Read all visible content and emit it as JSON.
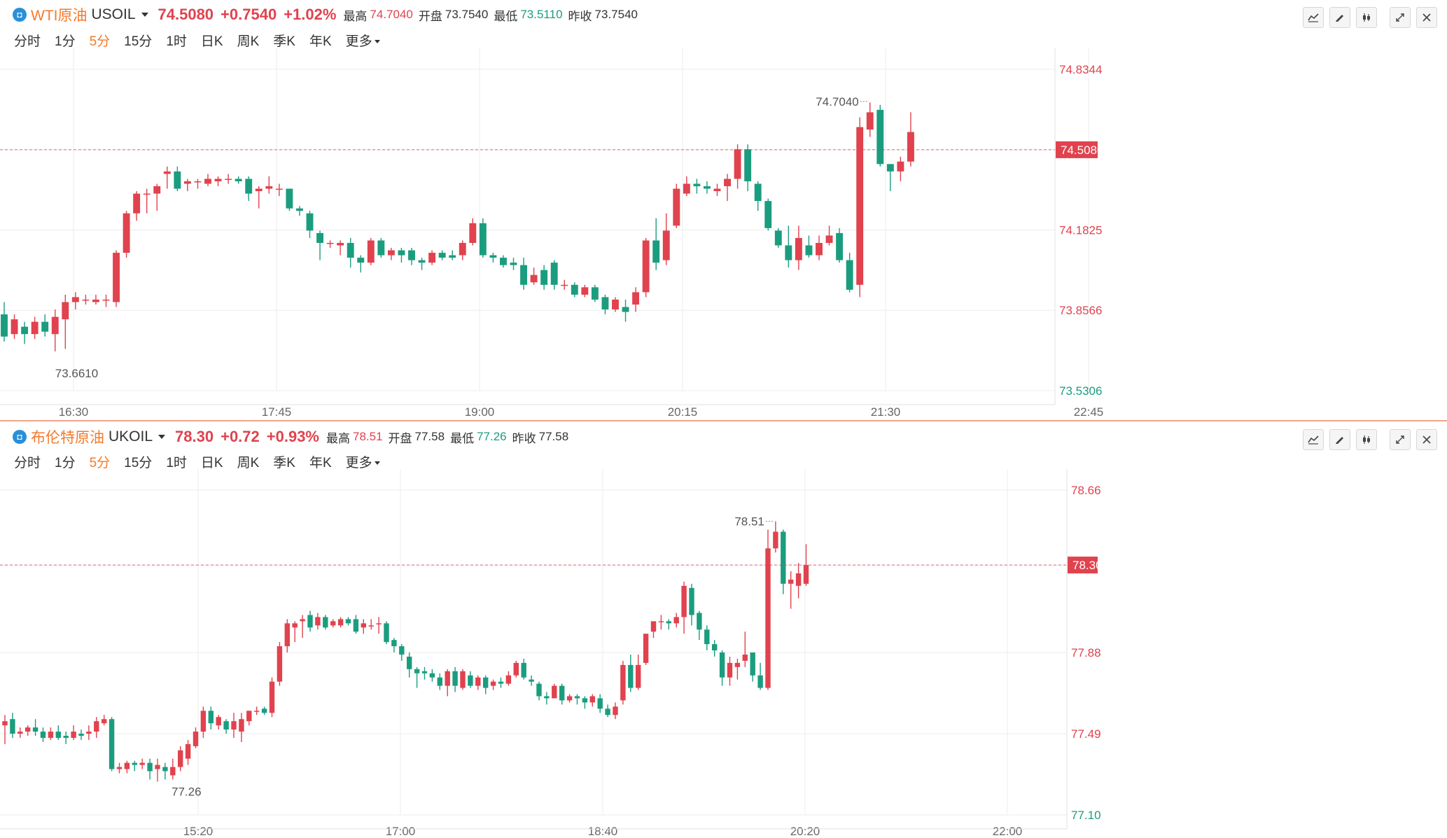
{
  "periods": [
    "分时",
    "1分",
    "5分",
    "15分",
    "1时",
    "日K",
    "周K",
    "季K",
    "年K",
    "更多"
  ],
  "active_period": "5分",
  "colors": {
    "up": "#e0424e",
    "down": "#1a9d7e",
    "accent": "#f47a2a",
    "grid": "#ececec"
  },
  "icons": [
    "indicator-icon",
    "draw-icon",
    "candle-type-icon",
    "expand-icon",
    "close-icon"
  ],
  "wti": {
    "logo": "◘",
    "name": "WTI原油",
    "symbol": "USOIL",
    "price": "74.5080",
    "change": "+0.7540",
    "change_pct": "+1.02%",
    "high_label": "最高",
    "high": "74.7040",
    "open_label": "开盘",
    "open": "73.7540",
    "low_label": "最低",
    "low": "73.5110",
    "prev_label": "昨收",
    "prev": "73.7540"
  },
  "brent": {
    "logo": "◘",
    "name": "布伦特原油",
    "symbol": "UKOIL",
    "price": "78.30",
    "change": "+0.72",
    "change_pct": "+0.93%",
    "high_label": "最高",
    "high": "78.51",
    "open_label": "开盘",
    "open": "77.58",
    "low_label": "最低",
    "low": "77.26",
    "prev_label": "昨收",
    "prev": "77.58"
  },
  "chart_data": [
    {
      "type": "candlestick",
      "title": "WTI原油 USOIL",
      "x_ticks": [
        "16:30",
        "17:45",
        "19:00",
        "20:15",
        "21:30",
        "22:45"
      ],
      "y_ticks": [
        "74.8344",
        "74.5080",
        "74.1825",
        "73.8566",
        "73.5306"
      ],
      "ylim": [
        73.5306,
        74.8344
      ],
      "last_price": 74.508,
      "last_label": "74.5080",
      "max_annotation": {
        "label": "74.7040",
        "value": 74.704
      },
      "min_annotation": {
        "label": "73.6610",
        "value": 73.661
      },
      "candles": [
        [
          73.84,
          73.75,
          73.89,
          73.73
        ],
        [
          73.76,
          73.82,
          73.84,
          73.74
        ],
        [
          73.79,
          73.76,
          73.81,
          73.72
        ],
        [
          73.76,
          73.81,
          73.83,
          73.74
        ],
        [
          73.81,
          73.77,
          73.84,
          73.75
        ],
        [
          73.76,
          73.83,
          73.86,
          73.69
        ],
        [
          73.82,
          73.89,
          73.92,
          73.7
        ],
        [
          73.89,
          73.91,
          73.93,
          73.86
        ],
        [
          73.9,
          73.9,
          73.92,
          73.88
        ],
        [
          73.89,
          73.9,
          73.92,
          73.88
        ],
        [
          73.9,
          73.9,
          73.92,
          73.87
        ],
        [
          73.89,
          74.09,
          74.1,
          73.87
        ],
        [
          74.09,
          74.25,
          74.26,
          74.07
        ],
        [
          74.25,
          74.33,
          74.34,
          74.22
        ],
        [
          74.33,
          74.33,
          74.35,
          74.25
        ],
        [
          74.33,
          74.36,
          74.37,
          74.26
        ],
        [
          74.41,
          74.42,
          74.44,
          74.35
        ],
        [
          74.42,
          74.35,
          74.44,
          74.34
        ],
        [
          74.37,
          74.38,
          74.39,
          74.34
        ],
        [
          74.38,
          74.38,
          74.39,
          74.35
        ],
        [
          74.37,
          74.39,
          74.41,
          74.36
        ],
        [
          74.38,
          74.39,
          74.4,
          74.36
        ],
        [
          74.39,
          74.39,
          74.41,
          74.37
        ],
        [
          74.39,
          74.38,
          74.4,
          74.37
        ],
        [
          74.39,
          74.33,
          74.4,
          74.3
        ],
        [
          74.34,
          74.35,
          74.36,
          74.27
        ],
        [
          74.35,
          74.36,
          74.4,
          74.33
        ],
        [
          74.35,
          74.35,
          74.37,
          74.32
        ],
        [
          74.35,
          74.27,
          74.35,
          74.26
        ],
        [
          74.27,
          74.26,
          74.28,
          74.24
        ],
        [
          74.25,
          74.18,
          74.26,
          74.15
        ],
        [
          74.17,
          74.13,
          74.18,
          74.06
        ],
        [
          74.13,
          74.13,
          74.14,
          74.11
        ],
        [
          74.12,
          74.13,
          74.14,
          74.08
        ],
        [
          74.13,
          74.07,
          74.15,
          74.03
        ],
        [
          74.07,
          74.05,
          74.08,
          74.01
        ],
        [
          74.05,
          74.14,
          74.15,
          74.04
        ],
        [
          74.14,
          74.08,
          74.15,
          74.07
        ],
        [
          74.08,
          74.1,
          74.11,
          74.06
        ],
        [
          74.1,
          74.08,
          74.11,
          74.05
        ],
        [
          74.1,
          74.06,
          74.11,
          74.04
        ],
        [
          74.06,
          74.05,
          74.07,
          74.02
        ],
        [
          74.05,
          74.09,
          74.1,
          74.04
        ],
        [
          74.09,
          74.07,
          74.1,
          74.06
        ],
        [
          74.08,
          74.07,
          74.1,
          74.06
        ],
        [
          74.08,
          74.13,
          74.14,
          74.06
        ],
        [
          74.13,
          74.21,
          74.23,
          74.12
        ],
        [
          74.21,
          74.08,
          74.23,
          74.07
        ],
        [
          74.08,
          74.07,
          74.09,
          74.05
        ],
        [
          74.07,
          74.04,
          74.08,
          74.03
        ],
        [
          74.05,
          74.04,
          74.07,
          74.02
        ],
        [
          74.04,
          73.96,
          74.07,
          73.94
        ],
        [
          73.97,
          74.0,
          74.03,
          73.96
        ],
        [
          74.02,
          73.96,
          74.04,
          73.94
        ],
        [
          74.05,
          73.96,
          74.06,
          73.94
        ],
        [
          73.96,
          73.96,
          73.98,
          73.94
        ],
        [
          73.96,
          73.92,
          73.97,
          73.91
        ],
        [
          73.92,
          73.95,
          73.96,
          73.91
        ],
        [
          73.95,
          73.9,
          73.96,
          73.89
        ],
        [
          73.91,
          73.86,
          73.92,
          73.84
        ],
        [
          73.86,
          73.9,
          73.91,
          73.85
        ],
        [
          73.87,
          73.85,
          73.9,
          73.81
        ],
        [
          73.88,
          73.93,
          73.95,
          73.85
        ],
        [
          73.93,
          74.14,
          74.15,
          73.91
        ],
        [
          74.14,
          74.05,
          74.23,
          74.02
        ],
        [
          74.06,
          74.18,
          74.25,
          74.04
        ],
        [
          74.2,
          74.35,
          74.37,
          74.19
        ],
        [
          74.33,
          74.37,
          74.4,
          74.32
        ],
        [
          74.37,
          74.36,
          74.39,
          74.33
        ],
        [
          74.36,
          74.35,
          74.38,
          74.33
        ],
        [
          74.34,
          74.35,
          74.37,
          74.32
        ],
        [
          74.36,
          74.39,
          74.41,
          74.3
        ],
        [
          74.39,
          74.51,
          74.53,
          74.35
        ],
        [
          74.51,
          74.38,
          74.53,
          74.34
        ],
        [
          74.37,
          74.3,
          74.38,
          74.26
        ],
        [
          74.3,
          74.19,
          74.31,
          74.18
        ],
        [
          74.18,
          74.12,
          74.19,
          74.11
        ],
        [
          74.12,
          74.06,
          74.2,
          74.03
        ],
        [
          74.06,
          74.15,
          74.2,
          74.02
        ],
        [
          74.12,
          74.08,
          74.16,
          74.07
        ],
        [
          74.08,
          74.13,
          74.16,
          74.06
        ],
        [
          74.13,
          74.16,
          74.2,
          74.12
        ],
        [
          74.17,
          74.06,
          74.19,
          74.05
        ],
        [
          74.06,
          73.94,
          74.09,
          73.93
        ],
        [
          73.96,
          74.6,
          74.64,
          73.91
        ],
        [
          74.59,
          74.66,
          74.7,
          74.56
        ],
        [
          74.67,
          74.45,
          74.69,
          74.44
        ],
        [
          74.45,
          74.42,
          74.45,
          74.34
        ],
        [
          74.42,
          74.46,
          74.48,
          74.38
        ],
        [
          74.46,
          74.58,
          74.66,
          74.44
        ]
      ]
    },
    {
      "type": "candlestick",
      "title": "布伦特原油 UKOIL",
      "x_ticks": [
        "15:20",
        "17:00",
        "18:40",
        "20:20",
        "22:00"
      ],
      "y_ticks": [
        "78.66",
        "78.30",
        "77.88",
        "77.49",
        "77.10"
      ],
      "ylim": [
        77.1,
        78.66
      ],
      "last_price": 78.3,
      "last_label": "78.30",
      "max_annotation": {
        "label": "78.51",
        "value": 78.51
      },
      "min_annotation": {
        "label": "77.26",
        "value": 77.26
      },
      "candles": [
        [
          77.53,
          77.55,
          77.58,
          77.44
        ],
        [
          77.56,
          77.49,
          77.59,
          77.47
        ],
        [
          77.49,
          77.5,
          77.52,
          77.47
        ],
        [
          77.5,
          77.52,
          77.53,
          77.48
        ],
        [
          77.52,
          77.5,
          77.56,
          77.48
        ],
        [
          77.5,
          77.47,
          77.52,
          77.45
        ],
        [
          77.47,
          77.5,
          77.52,
          77.46
        ],
        [
          77.5,
          77.47,
          77.53,
          77.46
        ],
        [
          77.48,
          77.47,
          77.5,
          77.44
        ],
        [
          77.47,
          77.5,
          77.53,
          77.46
        ],
        [
          77.49,
          77.48,
          77.51,
          77.46
        ],
        [
          77.49,
          77.5,
          77.53,
          77.46
        ],
        [
          77.5,
          77.55,
          77.57,
          77.47
        ],
        [
          77.54,
          77.56,
          77.58,
          77.53
        ],
        [
          77.56,
          77.32,
          77.57,
          77.31
        ],
        [
          77.32,
          77.33,
          77.35,
          77.3
        ],
        [
          77.32,
          77.35,
          77.36,
          77.3
        ],
        [
          77.35,
          77.34,
          77.36,
          77.31
        ],
        [
          77.34,
          77.35,
          77.37,
          77.32
        ],
        [
          77.35,
          77.31,
          77.37,
          77.27
        ],
        [
          77.32,
          77.34,
          77.37,
          77.26
        ],
        [
          77.33,
          77.31,
          77.35,
          77.27
        ],
        [
          77.29,
          77.33,
          77.37,
          77.27
        ],
        [
          77.33,
          77.41,
          77.43,
          77.31
        ],
        [
          77.37,
          77.44,
          77.46,
          77.34
        ],
        [
          77.43,
          77.5,
          77.52,
          77.42
        ],
        [
          77.5,
          77.6,
          77.62,
          77.47
        ],
        [
          77.6,
          77.54,
          77.62,
          77.51
        ],
        [
          77.53,
          77.57,
          77.58,
          77.51
        ],
        [
          77.55,
          77.51,
          77.56,
          77.49
        ],
        [
          77.51,
          77.55,
          77.59,
          77.47
        ],
        [
          77.5,
          77.56,
          77.59,
          77.45
        ],
        [
          77.55,
          77.6,
          77.6,
          77.53
        ],
        [
          77.6,
          77.6,
          77.62,
          77.58
        ],
        [
          77.61,
          77.59,
          77.62,
          77.58
        ],
        [
          77.59,
          77.74,
          77.76,
          77.57
        ],
        [
          77.74,
          77.91,
          77.93,
          77.72
        ],
        [
          77.91,
          78.02,
          78.04,
          77.88
        ],
        [
          78.0,
          78.02,
          78.03,
          77.93
        ],
        [
          78.03,
          78.04,
          78.06,
          77.95
        ],
        [
          78.06,
          78.0,
          78.08,
          77.98
        ],
        [
          78.01,
          78.05,
          78.07,
          77.99
        ],
        [
          78.05,
          78.0,
          78.06,
          77.99
        ],
        [
          78.01,
          78.03,
          78.04,
          78.0
        ],
        [
          78.01,
          78.04,
          78.05,
          78.0
        ],
        [
          78.04,
          78.02,
          78.05,
          78.01
        ],
        [
          78.04,
          77.98,
          78.06,
          77.97
        ],
        [
          78.0,
          78.02,
          78.04,
          77.97
        ],
        [
          78.01,
          78.01,
          78.04,
          77.99
        ],
        [
          78.02,
          78.02,
          78.05,
          77.97
        ],
        [
          78.02,
          77.93,
          78.03,
          77.92
        ],
        [
          77.94,
          77.91,
          77.95,
          77.88
        ],
        [
          77.91,
          77.87,
          77.92,
          77.84
        ],
        [
          77.86,
          77.8,
          77.88,
          77.76
        ],
        [
          77.8,
          77.78,
          77.81,
          77.71
        ],
        [
          77.79,
          77.78,
          77.81,
          77.75
        ],
        [
          77.78,
          77.76,
          77.8,
          77.74
        ],
        [
          77.76,
          77.72,
          77.78,
          77.7
        ],
        [
          77.72,
          77.79,
          77.8,
          77.67
        ],
        [
          77.79,
          77.72,
          77.81,
          77.69
        ],
        [
          77.71,
          77.79,
          77.8,
          77.7
        ],
        [
          77.77,
          77.72,
          77.79,
          77.71
        ],
        [
          77.72,
          77.76,
          77.77,
          77.7
        ],
        [
          77.76,
          77.71,
          77.77,
          77.68
        ],
        [
          77.72,
          77.74,
          77.75,
          77.7
        ],
        [
          77.74,
          77.73,
          77.76,
          77.71
        ],
        [
          77.73,
          77.77,
          77.79,
          77.72
        ],
        [
          77.77,
          77.83,
          77.84,
          77.76
        ],
        [
          77.83,
          77.76,
          77.85,
          77.75
        ],
        [
          77.75,
          77.74,
          77.77,
          77.72
        ],
        [
          77.73,
          77.67,
          77.74,
          77.65
        ],
        [
          77.67,
          77.66,
          77.69,
          77.63
        ],
        [
          77.66,
          77.72,
          77.73,
          77.66
        ],
        [
          77.72,
          77.65,
          77.73,
          77.63
        ],
        [
          77.65,
          77.67,
          77.68,
          77.64
        ],
        [
          77.67,
          77.66,
          77.68,
          77.63
        ],
        [
          77.66,
          77.64,
          77.67,
          77.61
        ],
        [
          77.64,
          77.67,
          77.68,
          77.62
        ],
        [
          77.66,
          77.61,
          77.68,
          77.59
        ],
        [
          77.61,
          77.58,
          77.63,
          77.57
        ],
        [
          77.58,
          77.62,
          77.64,
          77.56
        ],
        [
          77.65,
          77.82,
          77.84,
          77.63
        ],
        [
          77.82,
          77.71,
          77.87,
          77.69
        ],
        [
          77.71,
          77.82,
          77.87,
          77.7
        ],
        [
          77.83,
          77.97,
          77.97,
          77.82
        ],
        [
          77.98,
          78.03,
          78.03,
          77.95
        ],
        [
          78.03,
          78.03,
          78.06,
          77.99
        ],
        [
          78.03,
          78.02,
          78.04,
          77.99
        ],
        [
          78.02,
          78.05,
          78.07,
          78.0
        ],
        [
          78.05,
          78.2,
          78.22,
          77.97
        ],
        [
          78.19,
          78.06,
          78.21,
          78.01
        ],
        [
          78.07,
          77.99,
          78.08,
          77.94
        ],
        [
          77.99,
          77.92,
          78.01,
          77.89
        ],
        [
          77.92,
          77.89,
          77.94,
          77.86
        ],
        [
          77.88,
          77.76,
          77.89,
          77.72
        ],
        [
          77.76,
          77.83,
          77.86,
          77.72
        ],
        [
          77.81,
          77.83,
          77.85,
          77.75
        ],
        [
          77.84,
          77.87,
          77.98,
          77.81
        ],
        [
          77.88,
          77.77,
          77.88,
          77.74
        ],
        [
          77.77,
          77.71,
          77.83,
          77.7
        ],
        [
          77.71,
          78.38,
          78.47,
          77.7
        ],
        [
          78.38,
          78.46,
          78.51,
          78.36
        ],
        [
          78.46,
          78.21,
          78.47,
          78.16
        ],
        [
          78.21,
          78.23,
          78.27,
          78.09
        ],
        [
          78.2,
          78.26,
          78.31,
          78.14
        ],
        [
          78.21,
          78.3,
          78.4,
          78.2
        ]
      ]
    }
  ]
}
